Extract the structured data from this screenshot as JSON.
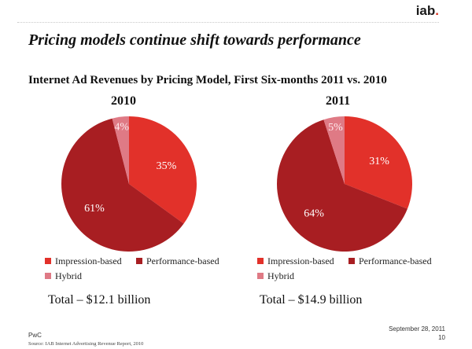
{
  "logo": {
    "text": "iab",
    "dot": "."
  },
  "slide": {
    "title": "Pricing models continue shift towards performance",
    "subtitle": "Internet Ad Revenues by Pricing Model, First Six-months 2011 vs. 2010"
  },
  "colors": {
    "impression": "#e2312a",
    "performance": "#a81e22",
    "hybrid": "#df7a85",
    "label_light": "#ffffff",
    "label_hybrid": "#ffe9ec"
  },
  "chart_data": [
    {
      "type": "pie",
      "title": "2010",
      "series": [
        {
          "name": "Impression-based",
          "value": 35,
          "label": "35%"
        },
        {
          "name": "Performance-based",
          "value": 61,
          "label": "61%"
        },
        {
          "name": "Hybrid",
          "value": 4,
          "label": "4%"
        }
      ],
      "legend": [
        "Impression-based",
        "Performance-based",
        "Hybrid"
      ],
      "legend_position": "bottom",
      "total": "Total – $12.1 billion"
    },
    {
      "type": "pie",
      "title": "2011",
      "series": [
        {
          "name": "Impression-based",
          "value": 31,
          "label": "31%"
        },
        {
          "name": "Performance-based",
          "value": 64,
          "label": "64%"
        },
        {
          "name": "Hybrid",
          "value": 5,
          "label": "5%"
        }
      ],
      "legend": [
        "Impression-based",
        "Performance-based",
        "Hybrid"
      ],
      "legend_position": "bottom",
      "total": "Total – $14.9 billion"
    }
  ],
  "footer": {
    "left": "PwC",
    "source": "Source: IAB Internet Advertising Revenue Report, 2010",
    "date": "September 28, 2011",
    "page": "10"
  }
}
